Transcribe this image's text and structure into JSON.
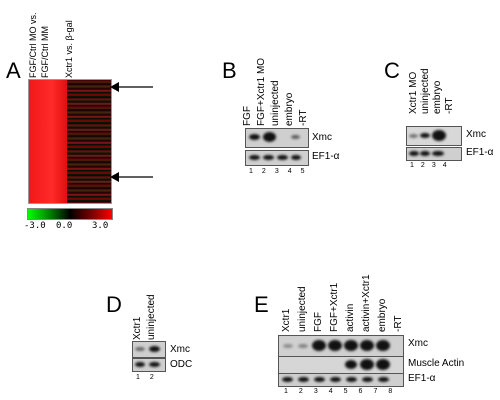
{
  "panels": {
    "A": {
      "label": "A",
      "columns": [
        "FGF/Ctrl MO vs.",
        "FGF/Ctrl MM",
        "Xctr1 vs. β-gal"
      ],
      "scale_labels": [
        "-3.0",
        "0.0",
        "3.0"
      ],
      "colors": {
        "low": "#00ff00",
        "mid": "#000000",
        "high": "#ff0000"
      }
    },
    "B": {
      "label": "B",
      "lanes": [
        "FGF",
        "FGF+Xctr1 MO",
        "uninjected",
        "embryo",
        "-RT"
      ],
      "lane_numbers": [
        "1",
        "2",
        "3",
        "4",
        "5"
      ],
      "rows": [
        "Xmc",
        "EF1-α"
      ]
    },
    "C": {
      "label": "C",
      "lanes": [
        "Xctr1 MO",
        "uninjected",
        "embryo",
        "-RT"
      ],
      "lane_numbers": [
        "1",
        "2",
        "3",
        "4"
      ],
      "rows": [
        "Xmc",
        "EF1-α"
      ]
    },
    "D": {
      "label": "D",
      "lanes": [
        "Xctr1",
        "uninjected"
      ],
      "lane_numbers": [
        "1",
        "2"
      ],
      "rows": [
        "Xmc",
        "ODC"
      ]
    },
    "E": {
      "label": "E",
      "lanes": [
        "Xctr1",
        "uninjected",
        "FGF",
        "FGF+Xctr1",
        "activin",
        "activin+Xctr1",
        "embryo",
        "-RT"
      ],
      "lane_numbers": [
        "1",
        "2",
        "3",
        "4",
        "5",
        "6",
        "7",
        "8"
      ],
      "rows": [
        "Xmc",
        "Muscle Actin",
        "EF1-α"
      ]
    }
  }
}
